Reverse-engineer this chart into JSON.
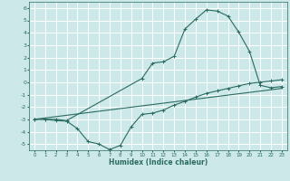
{
  "title": "",
  "xlabel": "Humidex (Indice chaleur)",
  "ylabel": "",
  "bg_color": "#cde8e8",
  "grid_color": "#ffffff",
  "line_color": "#2a6b62",
  "xlim": [
    -0.5,
    23.5
  ],
  "ylim": [
    -5.5,
    6.5
  ],
  "xticks": [
    0,
    1,
    2,
    3,
    4,
    5,
    6,
    7,
    8,
    9,
    10,
    11,
    12,
    13,
    14,
    15,
    16,
    17,
    18,
    19,
    20,
    21,
    22,
    23
  ],
  "yticks": [
    -5,
    -4,
    -3,
    -2,
    -1,
    0,
    1,
    2,
    3,
    4,
    5,
    6
  ],
  "line1_x": [
    0,
    1,
    2,
    3,
    10,
    11,
    12,
    13,
    14,
    15,
    16,
    17,
    18,
    19,
    20,
    21,
    22,
    23
  ],
  "line1_y": [
    -3.0,
    -3.0,
    -3.0,
    -3.1,
    0.3,
    1.55,
    1.65,
    2.1,
    4.3,
    5.1,
    5.85,
    5.75,
    5.35,
    4.05,
    2.5,
    -0.25,
    -0.45,
    -0.35
  ],
  "line2_x": [
    0,
    1,
    2,
    3,
    4,
    5,
    6,
    7,
    8,
    9,
    10,
    11,
    12,
    13,
    14,
    15,
    16,
    17,
    18,
    19,
    20,
    21,
    22,
    23
  ],
  "line2_y": [
    -3.0,
    -3.0,
    -3.1,
    -3.15,
    -3.75,
    -4.8,
    -5.0,
    -5.45,
    -5.1,
    -3.6,
    -2.6,
    -2.5,
    -2.25,
    -1.85,
    -1.55,
    -1.2,
    -0.9,
    -0.7,
    -0.5,
    -0.3,
    -0.1,
    0.0,
    0.1,
    0.2
  ],
  "line3_x": [
    0,
    23
  ],
  "line3_y": [
    -3.0,
    -0.5
  ]
}
